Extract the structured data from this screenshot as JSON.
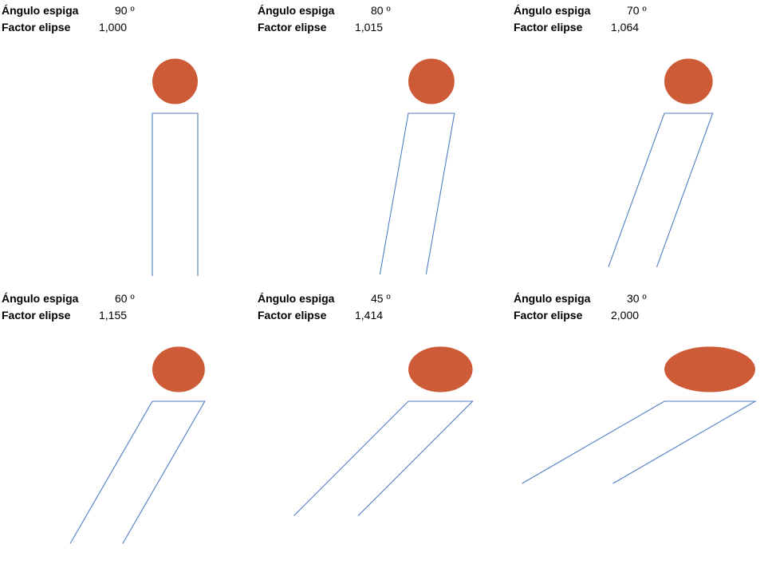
{
  "panels": [
    {
      "angle_label": "Ángulo espiga",
      "angle_value": "90  º",
      "factor_label": "Factor elipse",
      "factor_value": "1,000",
      "angle_deg": 90,
      "ellipse_factor": 1.0
    },
    {
      "angle_label": "Ángulo espiga",
      "angle_value": "80  º",
      "factor_label": "Factor elipse",
      "factor_value": "1,015",
      "angle_deg": 80,
      "ellipse_factor": 1.015
    },
    {
      "angle_label": "Ángulo espiga",
      "angle_value": "70  º",
      "factor_label": "Factor elipse",
      "factor_value": "1,064",
      "angle_deg": 70,
      "ellipse_factor": 1.064
    },
    {
      "angle_label": "Ángulo espiga",
      "angle_value": "60  º",
      "factor_label": "Factor elipse",
      "factor_value": "1,155",
      "angle_deg": 60,
      "ellipse_factor": 1.155
    },
    {
      "angle_label": "Ángulo espiga",
      "angle_value": "45  º",
      "factor_label": "Factor elipse",
      "factor_value": "1,414",
      "angle_deg": 45,
      "ellipse_factor": 1.414
    },
    {
      "angle_label": "Ángulo espiga",
      "angle_value": "30  º",
      "factor_label": "Factor elipse",
      "factor_value": "2,000",
      "angle_deg": 30,
      "ellipse_factor": 2.0
    }
  ],
  "colors": {
    "ellipse_fill": "#CD5B38",
    "tenon_stroke": "#4F7DC4"
  }
}
